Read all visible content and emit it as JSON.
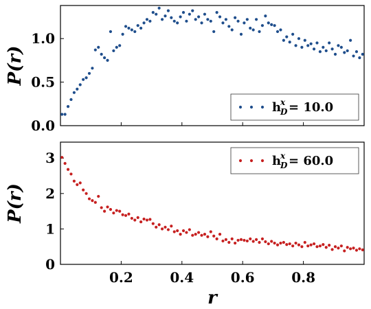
{
  "chart_data": [
    {
      "type": "scatter",
      "ylabel": "P(r)",
      "xlabel": "",
      "xlim": [
        0.0,
        1.0
      ],
      "ylim": [
        0.0,
        1.38
      ],
      "yticks": [
        0.0,
        0.5,
        1.0
      ],
      "ytick_labels": [
        "0.0",
        "0.5",
        "1.0"
      ],
      "xticks": [
        0.2,
        0.4,
        0.6,
        0.8
      ],
      "show_xtick_labels": false,
      "color": "#1f4e8c",
      "legend": {
        "text": "h",
        "sup": "x",
        "sub": "D",
        "value": " = 10.0",
        "placement": "lower-right"
      },
      "series": [
        {
          "x": [
            0.005,
            0.015,
            0.025,
            0.035,
            0.045,
            0.055,
            0.065,
            0.075,
            0.085,
            0.095,
            0.105,
            0.115,
            0.125,
            0.135,
            0.145,
            0.155,
            0.165,
            0.175,
            0.185,
            0.195,
            0.205,
            0.215,
            0.225,
            0.235,
            0.245,
            0.255,
            0.265,
            0.275,
            0.285,
            0.295,
            0.305,
            0.315,
            0.325,
            0.335,
            0.345,
            0.355,
            0.365,
            0.375,
            0.385,
            0.395,
            0.405,
            0.415,
            0.425,
            0.435,
            0.445,
            0.455,
            0.465,
            0.475,
            0.485,
            0.495,
            0.505,
            0.515,
            0.525,
            0.535,
            0.545,
            0.555,
            0.565,
            0.575,
            0.585,
            0.595,
            0.605,
            0.615,
            0.625,
            0.635,
            0.645,
            0.655,
            0.665,
            0.675,
            0.685,
            0.695,
            0.705,
            0.715,
            0.725,
            0.735,
            0.745,
            0.755,
            0.765,
            0.775,
            0.785,
            0.795,
            0.805,
            0.815,
            0.825,
            0.835,
            0.845,
            0.855,
            0.865,
            0.875,
            0.885,
            0.895,
            0.905,
            0.915,
            0.925,
            0.935,
            0.945,
            0.955,
            0.965,
            0.975,
            0.985,
            0.995
          ],
          "y": [
            0.13,
            0.13,
            0.22,
            0.3,
            0.38,
            0.42,
            0.47,
            0.53,
            0.55,
            0.6,
            0.66,
            0.87,
            0.9,
            0.82,
            0.78,
            0.75,
            1.08,
            0.86,
            0.9,
            0.92,
            1.05,
            1.14,
            1.12,
            1.1,
            1.08,
            1.15,
            1.12,
            1.18,
            1.22,
            1.2,
            1.3,
            1.28,
            1.35,
            1.22,
            1.26,
            1.32,
            1.24,
            1.2,
            1.18,
            1.25,
            1.3,
            1.2,
            1.28,
            1.32,
            1.22,
            1.25,
            1.18,
            1.28,
            1.22,
            1.2,
            1.08,
            1.3,
            1.25,
            1.18,
            1.22,
            1.14,
            1.1,
            1.24,
            1.2,
            1.05,
            1.18,
            1.22,
            1.12,
            1.1,
            1.22,
            1.08,
            1.15,
            1.26,
            1.18,
            1.16,
            1.15,
            1.08,
            1.1,
            0.98,
            1.02,
            0.96,
            1.05,
            0.92,
            1.0,
            0.9,
            0.98,
            0.92,
            0.94,
            0.88,
            0.95,
            0.85,
            0.9,
            0.86,
            0.95,
            0.88,
            0.82,
            0.92,
            0.9,
            0.84,
            0.86,
            0.98,
            0.8,
            0.85,
            0.78,
            0.82
          ]
        }
      ]
    },
    {
      "type": "scatter",
      "ylabel": "P(r)",
      "xlabel": "r",
      "xlim": [
        0.0,
        1.0
      ],
      "ylim": [
        0.0,
        3.45
      ],
      "yticks": [
        0,
        1,
        2,
        3
      ],
      "ytick_labels": [
        "0",
        "1",
        "2",
        "3"
      ],
      "xticks": [
        0.2,
        0.4,
        0.6,
        0.8
      ],
      "xtick_labels": [
        "0.2",
        "0.4",
        "0.6",
        "0.8"
      ],
      "show_xtick_labels": true,
      "color": "#c62020",
      "legend": {
        "text": "h",
        "sup": "x",
        "sub": "D",
        "value": " = 60.0",
        "placement": "upper-right"
      },
      "series": [
        {
          "x": [
            0.005,
            0.015,
            0.025,
            0.035,
            0.045,
            0.055,
            0.065,
            0.075,
            0.085,
            0.095,
            0.105,
            0.115,
            0.125,
            0.135,
            0.145,
            0.155,
            0.165,
            0.175,
            0.185,
            0.195,
            0.205,
            0.215,
            0.225,
            0.235,
            0.245,
            0.255,
            0.265,
            0.275,
            0.285,
            0.295,
            0.305,
            0.315,
            0.325,
            0.335,
            0.345,
            0.355,
            0.365,
            0.375,
            0.385,
            0.395,
            0.405,
            0.415,
            0.425,
            0.435,
            0.445,
            0.455,
            0.465,
            0.475,
            0.485,
            0.495,
            0.505,
            0.515,
            0.525,
            0.535,
            0.545,
            0.555,
            0.565,
            0.575,
            0.585,
            0.595,
            0.605,
            0.615,
            0.625,
            0.635,
            0.645,
            0.655,
            0.665,
            0.675,
            0.685,
            0.695,
            0.705,
            0.715,
            0.725,
            0.735,
            0.745,
            0.755,
            0.765,
            0.775,
            0.785,
            0.795,
            0.805,
            0.815,
            0.825,
            0.835,
            0.845,
            0.855,
            0.865,
            0.875,
            0.885,
            0.895,
            0.905,
            0.915,
            0.925,
            0.935,
            0.945,
            0.955,
            0.965,
            0.975,
            0.985,
            0.995
          ],
          "y": [
            3.02,
            2.85,
            2.68,
            2.55,
            2.35,
            2.25,
            2.3,
            2.1,
            2.0,
            1.85,
            1.8,
            1.75,
            1.92,
            1.6,
            1.5,
            1.62,
            1.55,
            1.45,
            1.52,
            1.5,
            1.4,
            1.38,
            1.42,
            1.3,
            1.25,
            1.32,
            1.2,
            1.28,
            1.25,
            1.27,
            1.15,
            1.05,
            1.12,
            1.0,
            1.05,
            0.98,
            1.08,
            0.92,
            0.95,
            0.85,
            0.95,
            0.9,
            0.98,
            0.82,
            0.85,
            0.9,
            0.82,
            0.85,
            0.78,
            0.92,
            0.8,
            0.72,
            0.85,
            0.66,
            0.7,
            0.62,
            0.72,
            0.6,
            0.68,
            0.7,
            0.68,
            0.66,
            0.72,
            0.65,
            0.7,
            0.62,
            0.72,
            0.64,
            0.58,
            0.65,
            0.6,
            0.55,
            0.6,
            0.62,
            0.56,
            0.58,
            0.52,
            0.6,
            0.55,
            0.5,
            0.62,
            0.52,
            0.55,
            0.58,
            0.5,
            0.52,
            0.56,
            0.48,
            0.54,
            0.42,
            0.5,
            0.46,
            0.52,
            0.38,
            0.48,
            0.44,
            0.46,
            0.4,
            0.44,
            0.41
          ]
        }
      ]
    }
  ]
}
